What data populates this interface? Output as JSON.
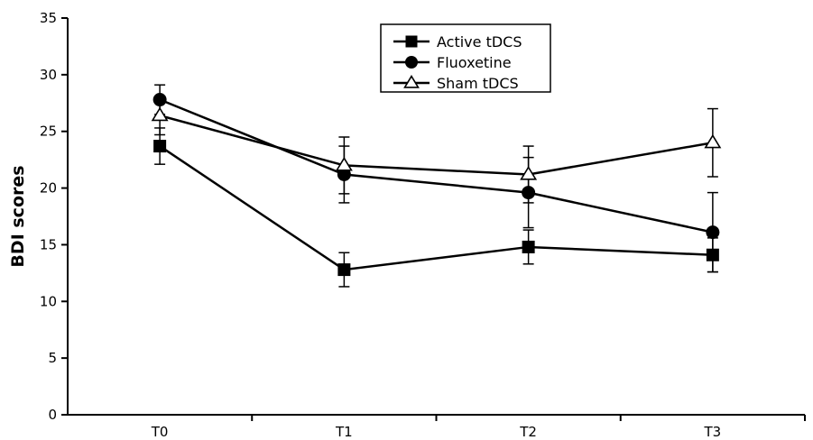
{
  "chart_data": {
    "type": "line",
    "title": "",
    "xlabel": "",
    "ylabel": "BDI scores",
    "ylim": [
      0,
      35
    ],
    "yticks": [
      "0",
      "5",
      "10",
      "15",
      "20",
      "25",
      "30",
      "35"
    ],
    "categories": [
      "T0",
      "T1",
      "T2",
      "T3"
    ],
    "grid": false,
    "legend_position": "top-center",
    "series": [
      {
        "name": "Active tDCS",
        "marker": "filled-square",
        "values": [
          23.7,
          12.8,
          14.8,
          14.1
        ],
        "error": [
          1.6,
          1.5,
          1.5,
          1.5
        ]
      },
      {
        "name": "Fluoxetine",
        "marker": "filled-circle",
        "values": [
          27.8,
          21.2,
          19.6,
          16.1
        ],
        "error": [
          1.3,
          2.5,
          3.1,
          3.5
        ]
      },
      {
        "name": "Sham tDCS",
        "marker": "open-triangle",
        "values": [
          26.4,
          22.0,
          21.2,
          24.0
        ],
        "error": [
          1.7,
          2.5,
          2.5,
          3.0
        ]
      }
    ]
  }
}
